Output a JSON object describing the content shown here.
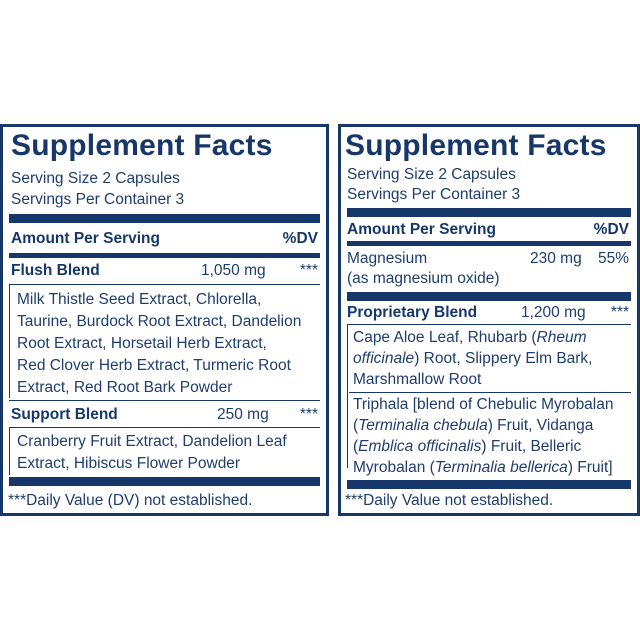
{
  "left": {
    "title": "Supplement Facts",
    "serving_size": "Serving Size 2 Capsules",
    "servings_per_container": "Servings Per Container 3",
    "header_amount": "Amount Per Serving",
    "header_dv": "%DV",
    "flush": {
      "name": "Flush Blend",
      "amount": "1,050 mg",
      "dv": "***",
      "lines": [
        "Milk Thistle Seed Extract, Chlorella,",
        "Taurine, Burdock Root Extract, Dandelion",
        "Root Extract, Horsetail Herb Extract,",
        "Red Clover Herb Extract, Turmeric Root",
        "Extract, Red Root Bark Powder"
      ]
    },
    "support": {
      "name": "Support Blend",
      "amount": "250 mg",
      "dv": "***",
      "lines": [
        "Cranberry Fruit Extract, Dandelion Leaf",
        "Extract, Hibiscus Flower Powder"
      ]
    },
    "footnote": "***Daily Value (DV) not established."
  },
  "right": {
    "title": "Supplement Facts",
    "serving_size": "Serving Size 2 Capsules",
    "servings_per_container": "Servings Per Container 3",
    "header_amount": "Amount Per Serving",
    "header_dv": "%DV",
    "magnesium": {
      "name": "Magnesium",
      "sub": "(as magnesium oxide)",
      "amount": "230 mg",
      "dv": "55%"
    },
    "proprietary": {
      "name": "Proprietary Blend",
      "amount": "1,200 mg",
      "dv": "***"
    },
    "aloe": {
      "l1a": "Cape Aloe Leaf, Rhubarb (",
      "l1b": "Rheum",
      "l2a": "officinale",
      "l2b": ") Root, Slippery Elm Bark,",
      "l3": "Marshmallow Root"
    },
    "triphala": {
      "l1": "Triphala [blend of Chebulic Myrobalan",
      "l2a": "(",
      "l2b": "Terminalia chebula",
      "l2c": ") Fruit, Vidanga",
      "l3a": "(",
      "l3b": "Emblica officinalis",
      "l3c": ") Fruit, Belleric",
      "l4a": "Myrobalan (",
      "l4b": "Terminalia bellerica",
      "l4c": ") Fruit]"
    },
    "footnote": "***Daily Value not established."
  }
}
